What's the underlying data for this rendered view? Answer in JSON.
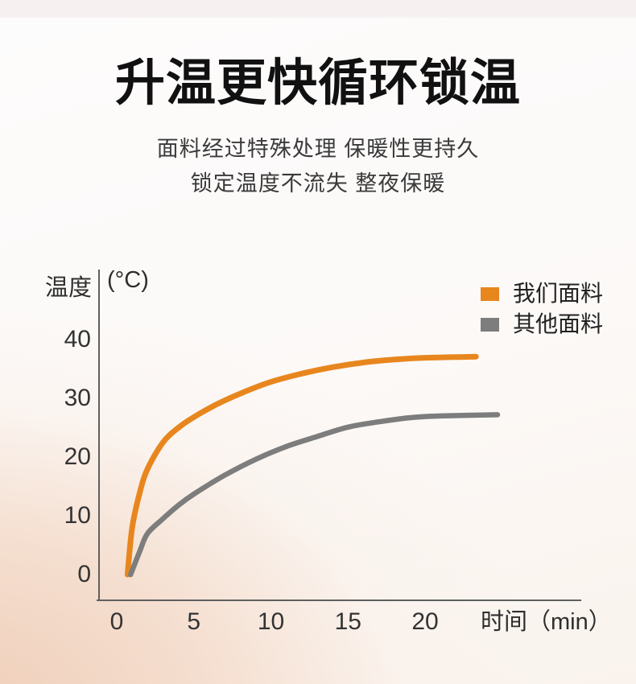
{
  "page": {
    "title": "升温更快循环锁温",
    "subtitle_line1": "面料经过特殊处理 保暖性更持久",
    "subtitle_line2": "锁定温度不流失 整夜保暖"
  },
  "colors": {
    "accent_orange": "#E8861E",
    "series_gray": "#7D7D7D",
    "axis": "#5F5F5F",
    "bg_peach": "#F0D2BE",
    "title_text": "#111111"
  },
  "chart_data": {
    "type": "line",
    "title": "",
    "xlabel": "时间（min）",
    "ylabel": "温度",
    "y_unit": "(°C)",
    "xlim": [
      0,
      25
    ],
    "ylim": [
      0,
      45
    ],
    "xticks": [
      0,
      5,
      10,
      15,
      20
    ],
    "yticks": [
      0,
      10,
      20,
      30,
      40
    ],
    "grid": false,
    "legend_position": "top-right",
    "series": [
      {
        "name": "我们面料",
        "color": "#E8861E",
        "points": [
          [
            0.7,
            0
          ],
          [
            1,
            8
          ],
          [
            1.5,
            14
          ],
          [
            2,
            18
          ],
          [
            3,
            22.5
          ],
          [
            4,
            25
          ],
          [
            5,
            26.8
          ],
          [
            6.5,
            29
          ],
          [
            8,
            30.8
          ],
          [
            10,
            32.8
          ],
          [
            12,
            34.2
          ],
          [
            14,
            35.3
          ],
          [
            16,
            36.1
          ],
          [
            18,
            36.6
          ],
          [
            20,
            36.9
          ],
          [
            23.3,
            37.1
          ]
        ]
      },
      {
        "name": "其他面料",
        "color": "#7D7D7D",
        "points": [
          [
            0.9,
            0
          ],
          [
            1.5,
            4
          ],
          [
            2,
            7
          ],
          [
            3,
            9.5
          ],
          [
            4,
            11.8
          ],
          [
            5,
            13.7
          ],
          [
            7,
            16.9
          ],
          [
            9,
            19.6
          ],
          [
            11,
            21.8
          ],
          [
            13,
            23.5
          ],
          [
            15,
            25.1
          ],
          [
            17,
            26.0
          ],
          [
            19,
            26.7
          ],
          [
            21,
            27.0
          ],
          [
            24.7,
            27.2
          ]
        ]
      }
    ]
  }
}
